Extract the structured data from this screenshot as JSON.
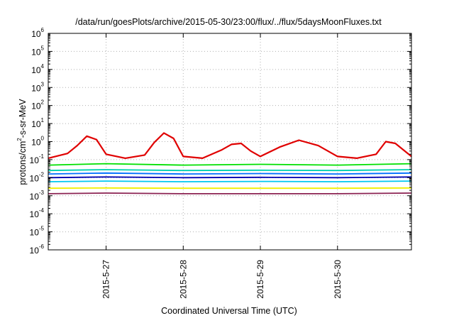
{
  "chart_data": {
    "type": "line",
    "title": "/data/run/goesPlots/archive/2015-05-30/23:00/flux/../flux/5daysMoonFluxes.txt",
    "xlabel": "Coordinated Universal Time (UTC)",
    "ylabel": "protons/cm2-s-sr-MeV",
    "yscale": "log",
    "ylim": [
      1e-06,
      1000000.0
    ],
    "xlim": [
      "2015-05-26 06:00",
      "2015-05-30 23:00"
    ],
    "grid": true,
    "legend": "none",
    "x_ticks": [
      "2015-5-27",
      "2015-5-28",
      "2015-5-29",
      "2015-5-30"
    ],
    "y_ticks": [
      {
        "base": "10",
        "exp": "-6"
      },
      {
        "base": "10",
        "exp": "-5"
      },
      {
        "base": "10",
        "exp": "-4"
      },
      {
        "base": "10",
        "exp": "-3"
      },
      {
        "base": "10",
        "exp": "-2"
      },
      {
        "base": "10",
        "exp": "-1"
      },
      {
        "base": "10",
        "exp": "0"
      },
      {
        "base": "10",
        "exp": "1"
      },
      {
        "base": "10",
        "exp": "2"
      },
      {
        "base": "10",
        "exp": "3"
      },
      {
        "base": "10",
        "exp": "4"
      },
      {
        "base": "10",
        "exp": "5"
      },
      {
        "base": "10",
        "exp": "6"
      }
    ],
    "series": [
      {
        "color": "#e00000",
        "x": [
          "2015-05-26 06:00",
          "2015-05-26 12:00",
          "2015-05-26 15:00",
          "2015-05-26 18:00",
          "2015-05-26 21:00",
          "2015-05-27 00:00",
          "2015-05-27 06:00",
          "2015-05-27 12:00",
          "2015-05-27 15:00",
          "2015-05-27 18:00",
          "2015-05-27 21:00",
          "2015-05-28 00:00",
          "2015-05-28 06:00",
          "2015-05-28 12:00",
          "2015-05-28 15:00",
          "2015-05-28 18:00",
          "2015-05-28 21:00",
          "2015-05-29 00:00",
          "2015-05-29 06:00",
          "2015-05-29 12:00",
          "2015-05-29 18:00",
          "2015-05-30 00:00",
          "2015-05-30 06:00",
          "2015-05-30 12:00",
          "2015-05-30 15:00",
          "2015-05-30 18:00",
          "2015-05-30 23:00"
        ],
        "y": [
          0.12,
          0.22,
          0.6,
          2.0,
          1.3,
          0.2,
          0.12,
          0.18,
          0.9,
          3.0,
          1.5,
          0.15,
          0.12,
          0.35,
          0.7,
          0.8,
          0.3,
          0.15,
          0.5,
          1.2,
          0.6,
          0.15,
          0.12,
          0.2,
          1.0,
          0.8,
          0.15
        ]
      },
      {
        "color": "#00e000",
        "x": [
          "2015-05-26 06:00",
          "2015-05-27 00:00",
          "2015-05-28 00:00",
          "2015-05-29 00:00",
          "2015-05-30 00:00",
          "2015-05-30 23:00"
        ],
        "y": [
          0.05,
          0.06,
          0.05,
          0.055,
          0.05,
          0.06
        ]
      },
      {
        "color": "#00d0b0",
        "x": [
          "2015-05-26 06:00",
          "2015-05-27 00:00",
          "2015-05-28 00:00",
          "2015-05-29 00:00",
          "2015-05-30 00:00",
          "2015-05-30 23:00"
        ],
        "y": [
          0.025,
          0.028,
          0.025,
          0.026,
          0.025,
          0.028
        ]
      },
      {
        "color": "#0070ff",
        "x": [
          "2015-05-26 06:00",
          "2015-05-27 00:00",
          "2015-05-28 00:00",
          "2015-05-29 00:00",
          "2015-05-30 00:00",
          "2015-05-30 23:00"
        ],
        "y": [
          0.016,
          0.018,
          0.016,
          0.017,
          0.016,
          0.018
        ]
      },
      {
        "color": "#0000b0",
        "x": [
          "2015-05-26 06:00",
          "2015-05-27 00:00",
          "2015-05-28 00:00",
          "2015-05-29 00:00",
          "2015-05-30 00:00",
          "2015-05-30 23:00"
        ],
        "y": [
          0.01,
          0.011,
          0.01,
          0.0105,
          0.01,
          0.011
        ]
      },
      {
        "color": "#00c8f0",
        "x": [
          "2015-05-26 06:00",
          "2015-05-27 00:00",
          "2015-05-28 00:00",
          "2015-05-29 00:00",
          "2015-05-30 00:00",
          "2015-05-30 23:00"
        ],
        "y": [
          0.006,
          0.0065,
          0.006,
          0.0062,
          0.006,
          0.0065
        ]
      },
      {
        "color": "#f0f000",
        "x": [
          "2015-05-26 06:00",
          "2015-05-27 00:00",
          "2015-05-28 00:00",
          "2015-05-29 00:00",
          "2015-05-30 00:00",
          "2015-05-30 23:00"
        ],
        "y": [
          0.0026,
          0.0027,
          0.0026,
          0.0026,
          0.0026,
          0.0027
        ]
      },
      {
        "color": "#8b2252",
        "x": [
          "2015-05-26 06:00",
          "2015-05-27 00:00",
          "2015-05-28 00:00",
          "2015-05-29 00:00",
          "2015-05-30 00:00",
          "2015-05-30 23:00"
        ],
        "y": [
          0.0013,
          0.0014,
          0.0013,
          0.0013,
          0.0013,
          0.0014
        ]
      }
    ]
  }
}
